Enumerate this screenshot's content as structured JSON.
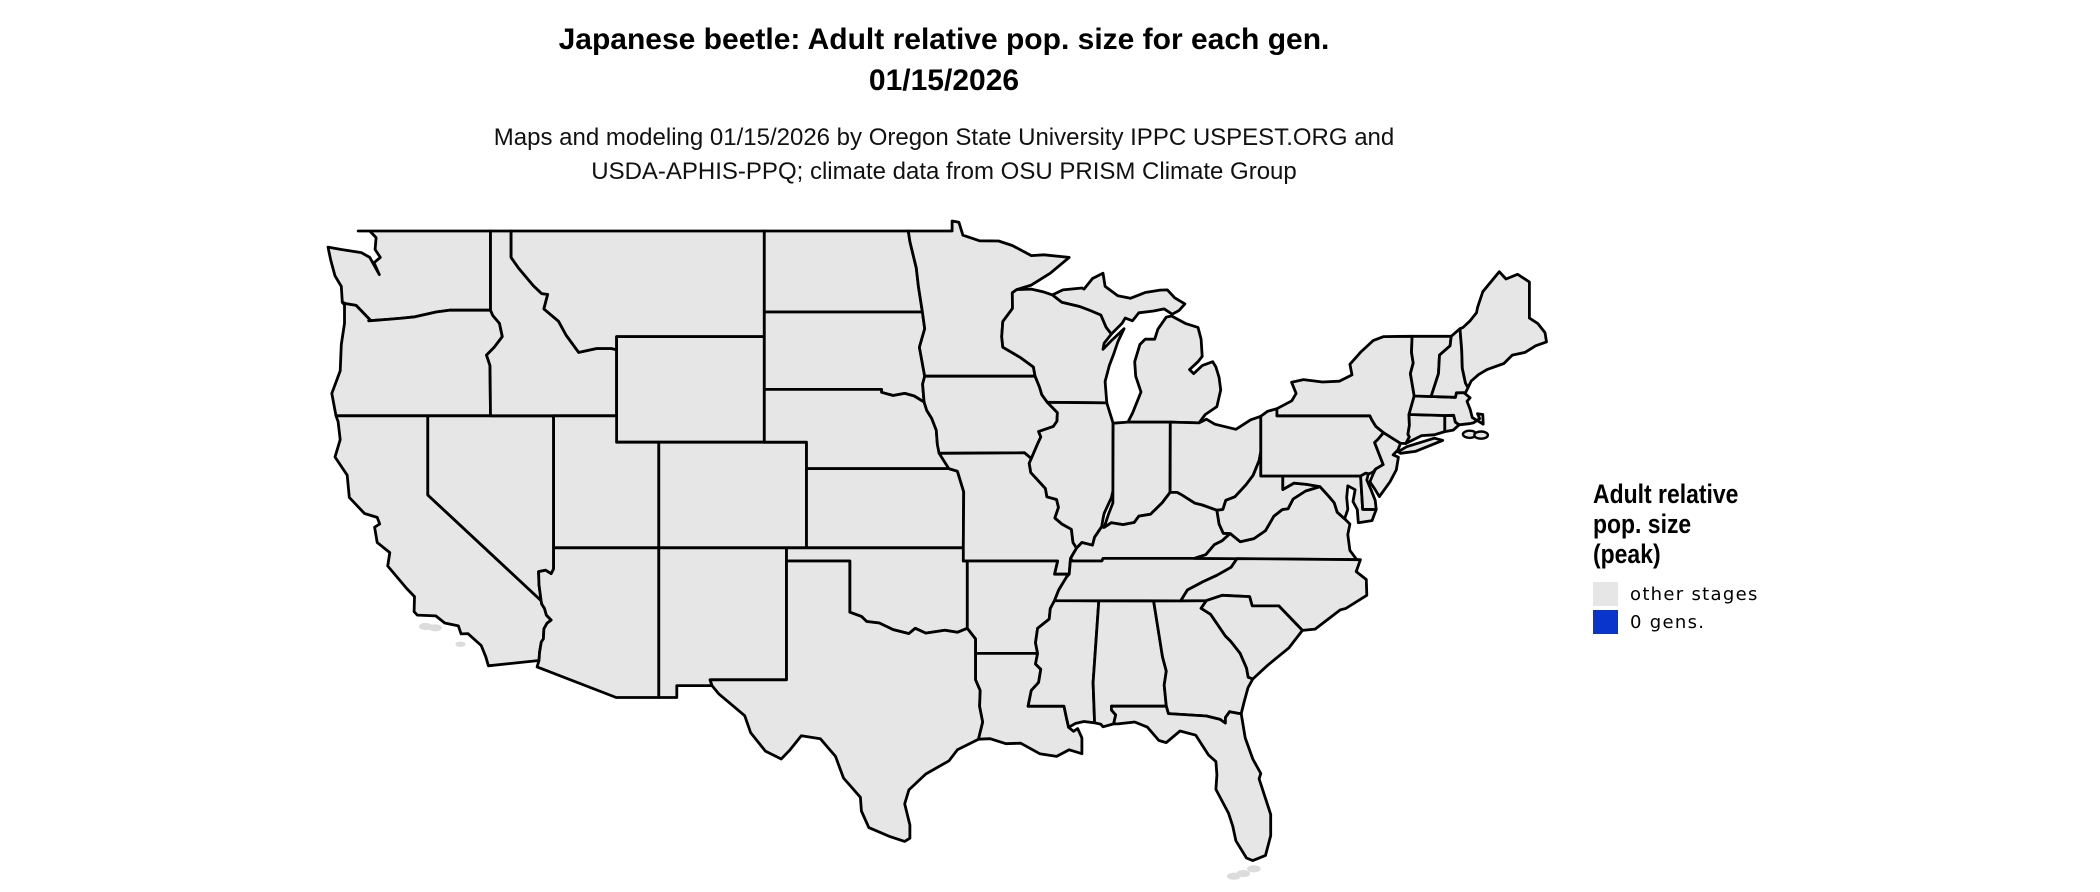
{
  "header": {
    "title_line1": "Japanese beetle: Adult relative pop. size for each gen.",
    "title_line2": "01/15/2026",
    "subtitle_line1": "Maps and modeling 01/15/2026 by Oregon State University IPPC USPEST.ORG and",
    "subtitle_line2": "USDA-APHIS-PPQ; climate data from OSU PRISM Climate Group"
  },
  "legend": {
    "title_lines": [
      "Adult relative",
      "pop. size",
      "(peak)"
    ],
    "items": [
      {
        "label": "other stages",
        "color": "#e6e6e6"
      },
      {
        "label": "0 gens.",
        "color": "#0a35cc"
      }
    ]
  },
  "map": {
    "state_fill": "#e6e6e6",
    "state_border": "#000000",
    "island_fill": "#dcdcdc",
    "background": "#ffffff"
  }
}
